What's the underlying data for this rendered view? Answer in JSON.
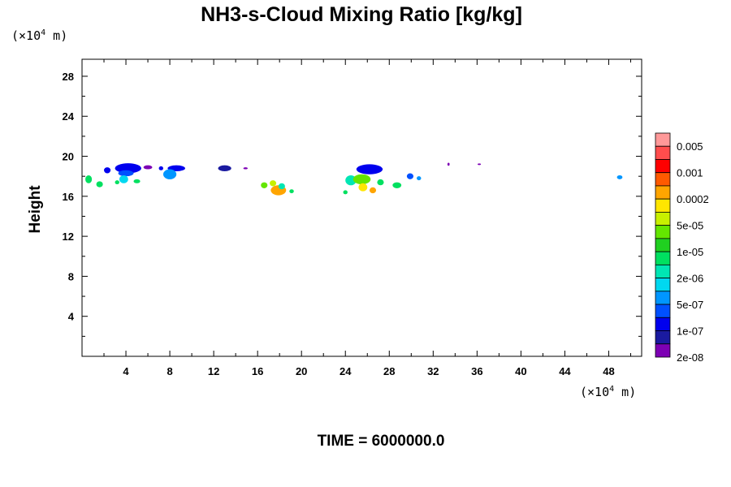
{
  "chart_data": {
    "type": "heatmap",
    "title": "NH3-s-Cloud Mixing Ratio [kg/kg]",
    "x_unit": {
      "prefix": "(×10",
      "exponent": "4",
      "suffix": " m)"
    },
    "y_unit": {
      "prefix": "(×10",
      "exponent": "4",
      "suffix": " m)"
    },
    "ylabel": "Height",
    "xlim": [
      0,
      51
    ],
    "ylim": [
      0,
      29.7
    ],
    "x_ticks": [
      "4",
      "8",
      "12",
      "16",
      "20",
      "24",
      "28",
      "32",
      "36",
      "40",
      "44",
      "48"
    ],
    "y_ticks": [
      "4",
      "8",
      "12",
      "16",
      "20",
      "24",
      "28"
    ],
    "annotation": "TIME = 6000000.0",
    "colorbar": {
      "labels": [
        "0.005",
        "0.001",
        "0.0002",
        "5e-05",
        "1e-05",
        "2e-06",
        "5e-07",
        "1e-07",
        "2e-08"
      ],
      "colors": [
        "#ff9999",
        "#ff4d4d",
        "#ff0000",
        "#ff5a00",
        "#ffa500",
        "#ffe600",
        "#c8f000",
        "#64e600",
        "#20d020",
        "#00e060",
        "#00e6b4",
        "#00d8f0",
        "#0096ff",
        "#0050ff",
        "#0000ee",
        "#1a1aa0",
        "#7d00b4"
      ]
    },
    "clusters": [
      {
        "x": 0.6,
        "y": 17.7,
        "rx": 0.3,
        "ry": 0.4,
        "color": "#00e060"
      },
      {
        "x": 1.6,
        "y": 17.2,
        "rx": 0.3,
        "ry": 0.3,
        "color": "#00e060"
      },
      {
        "x": 2.3,
        "y": 18.6,
        "rx": 0.3,
        "ry": 0.3,
        "color": "#0000ee"
      },
      {
        "x": 4.2,
        "y": 18.8,
        "rx": 1.2,
        "ry": 0.5,
        "color": "#0000ee"
      },
      {
        "x": 4.0,
        "y": 18.3,
        "rx": 0.7,
        "ry": 0.3,
        "color": "#0050ff"
      },
      {
        "x": 3.8,
        "y": 17.7,
        "rx": 0.4,
        "ry": 0.4,
        "color": "#00d8f0"
      },
      {
        "x": 3.2,
        "y": 17.4,
        "rx": 0.2,
        "ry": 0.2,
        "color": "#00e060"
      },
      {
        "x": 5.0,
        "y": 17.5,
        "rx": 0.3,
        "ry": 0.2,
        "color": "#00e060"
      },
      {
        "x": 6.0,
        "y": 18.9,
        "rx": 0.4,
        "ry": 0.2,
        "color": "#7d00b4"
      },
      {
        "x": 7.2,
        "y": 18.8,
        "rx": 0.2,
        "ry": 0.2,
        "color": "#0000ee"
      },
      {
        "x": 8.6,
        "y": 18.8,
        "rx": 0.8,
        "ry": 0.3,
        "color": "#0000ee"
      },
      {
        "x": 8.0,
        "y": 18.2,
        "rx": 0.6,
        "ry": 0.5,
        "color": "#0096ff"
      },
      {
        "x": 13.0,
        "y": 18.8,
        "rx": 0.6,
        "ry": 0.3,
        "color": "#1a1aa0"
      },
      {
        "x": 14.9,
        "y": 18.8,
        "rx": 0.2,
        "ry": 0.1,
        "color": "#7d00b4"
      },
      {
        "x": 17.9,
        "y": 16.6,
        "rx": 0.7,
        "ry": 0.5,
        "color": "#ffa500"
      },
      {
        "x": 16.6,
        "y": 17.1,
        "rx": 0.3,
        "ry": 0.3,
        "color": "#64e600"
      },
      {
        "x": 17.4,
        "y": 17.3,
        "rx": 0.3,
        "ry": 0.3,
        "color": "#c8f000"
      },
      {
        "x": 18.2,
        "y": 17.0,
        "rx": 0.3,
        "ry": 0.3,
        "color": "#00e6b4"
      },
      {
        "x": 19.1,
        "y": 16.5,
        "rx": 0.2,
        "ry": 0.2,
        "color": "#00e060"
      },
      {
        "x": 24.0,
        "y": 16.4,
        "rx": 0.2,
        "ry": 0.2,
        "color": "#00e060"
      },
      {
        "x": 26.2,
        "y": 18.7,
        "rx": 1.2,
        "ry": 0.5,
        "color": "#0000ee"
      },
      {
        "x": 24.5,
        "y": 17.6,
        "rx": 0.5,
        "ry": 0.5,
        "color": "#00e6b4"
      },
      {
        "x": 25.5,
        "y": 17.7,
        "rx": 0.8,
        "ry": 0.5,
        "color": "#64e600"
      },
      {
        "x": 25.6,
        "y": 16.9,
        "rx": 0.4,
        "ry": 0.4,
        "color": "#ffe600"
      },
      {
        "x": 26.5,
        "y": 16.6,
        "rx": 0.3,
        "ry": 0.3,
        "color": "#ffa500"
      },
      {
        "x": 27.2,
        "y": 17.4,
        "rx": 0.3,
        "ry": 0.3,
        "color": "#00e060"
      },
      {
        "x": 28.7,
        "y": 17.1,
        "rx": 0.4,
        "ry": 0.3,
        "color": "#00e060"
      },
      {
        "x": 29.9,
        "y": 18.0,
        "rx": 0.3,
        "ry": 0.3,
        "color": "#0050ff"
      },
      {
        "x": 30.7,
        "y": 17.8,
        "rx": 0.2,
        "ry": 0.2,
        "color": "#0096ff"
      },
      {
        "x": 33.4,
        "y": 19.2,
        "rx": 0.1,
        "ry": 0.15,
        "color": "#7d00b4"
      },
      {
        "x": 36.2,
        "y": 19.2,
        "rx": 0.15,
        "ry": 0.08,
        "color": "#7d00b4"
      },
      {
        "x": 49.0,
        "y": 17.9,
        "rx": 0.25,
        "ry": 0.2,
        "color": "#0096ff"
      }
    ]
  }
}
